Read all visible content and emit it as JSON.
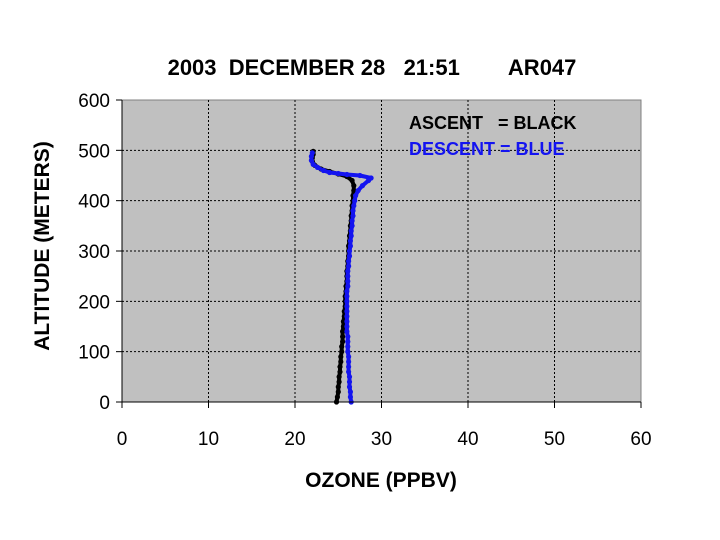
{
  "chart_data": {
    "type": "scatter",
    "title": "2003  DECEMBER 28   21:51        AR047",
    "xlabel": "OZONE (PPBV)",
    "ylabel": "ALTITUDE (METERS)",
    "xlim": [
      0,
      60
    ],
    "ylim": [
      0,
      600
    ],
    "xticks": [
      "0",
      "10",
      "20",
      "30",
      "40",
      "50",
      "60"
    ],
    "yticks": [
      "0",
      "100",
      "200",
      "300",
      "400",
      "500",
      "600"
    ],
    "grid": true,
    "plot_background": "#c0c0c0",
    "legend_position": "top-right",
    "legend": [
      {
        "label": "ASCENT   = BLACK",
        "color": "#000000"
      },
      {
        "label": "DESCENT = BLUE",
        "color": "#1414f0"
      }
    ],
    "series": [
      {
        "color": "#000000",
        "points": [
          [
            24.8,
            0
          ],
          [
            24.9,
            10
          ],
          [
            25.0,
            20
          ],
          [
            25.0,
            30
          ],
          [
            25.1,
            40
          ],
          [
            25.1,
            50
          ],
          [
            25.2,
            60
          ],
          [
            25.2,
            70
          ],
          [
            25.3,
            80
          ],
          [
            25.3,
            90
          ],
          [
            25.4,
            100
          ],
          [
            25.4,
            110
          ],
          [
            25.5,
            120
          ],
          [
            25.5,
            130
          ],
          [
            25.5,
            140
          ],
          [
            25.6,
            150
          ],
          [
            25.6,
            160
          ],
          [
            25.7,
            170
          ],
          [
            25.7,
            180
          ],
          [
            25.8,
            190
          ],
          [
            25.8,
            200
          ],
          [
            25.8,
            210
          ],
          [
            25.9,
            220
          ],
          [
            25.9,
            230
          ],
          [
            26.0,
            240
          ],
          [
            26.0,
            250
          ],
          [
            26.0,
            260
          ],
          [
            26.1,
            270
          ],
          [
            26.1,
            280
          ],
          [
            26.2,
            290
          ],
          [
            26.2,
            300
          ],
          [
            26.2,
            310
          ],
          [
            26.3,
            320
          ],
          [
            26.3,
            330
          ],
          [
            26.4,
            340
          ],
          [
            26.4,
            350
          ],
          [
            26.5,
            360
          ],
          [
            26.5,
            370
          ],
          [
            26.6,
            380
          ],
          [
            26.6,
            390
          ],
          [
            26.7,
            400
          ],
          [
            26.7,
            410
          ],
          [
            26.8,
            420
          ],
          [
            26.8,
            430
          ],
          [
            26.6,
            440
          ],
          [
            26.0,
            448
          ],
          [
            25.0,
            453
          ],
          [
            24.0,
            458
          ],
          [
            23.0,
            463
          ],
          [
            22.3,
            470
          ],
          [
            22.0,
            478
          ],
          [
            22.0,
            485
          ],
          [
            22.1,
            492
          ],
          [
            22.1,
            498
          ]
        ]
      },
      {
        "color": "#1414f0",
        "points": [
          [
            26.5,
            0
          ],
          [
            26.4,
            10
          ],
          [
            26.4,
            20
          ],
          [
            26.3,
            30
          ],
          [
            26.3,
            40
          ],
          [
            26.3,
            50
          ],
          [
            26.2,
            60
          ],
          [
            26.2,
            70
          ],
          [
            26.2,
            80
          ],
          [
            26.2,
            90
          ],
          [
            26.1,
            100
          ],
          [
            26.1,
            110
          ],
          [
            26.1,
            120
          ],
          [
            26.1,
            130
          ],
          [
            26.0,
            140
          ],
          [
            26.0,
            150
          ],
          [
            26.0,
            160
          ],
          [
            26.0,
            170
          ],
          [
            26.0,
            180
          ],
          [
            26.0,
            190
          ],
          [
            26.0,
            200
          ],
          [
            26.0,
            210
          ],
          [
            26.0,
            220
          ],
          [
            26.1,
            230
          ],
          [
            26.1,
            240
          ],
          [
            26.1,
            250
          ],
          [
            26.1,
            260
          ],
          [
            26.2,
            270
          ],
          [
            26.2,
            280
          ],
          [
            26.3,
            290
          ],
          [
            26.3,
            300
          ],
          [
            26.4,
            310
          ],
          [
            26.4,
            320
          ],
          [
            26.5,
            330
          ],
          [
            26.5,
            340
          ],
          [
            26.6,
            350
          ],
          [
            26.6,
            360
          ],
          [
            26.7,
            370
          ],
          [
            26.7,
            380
          ],
          [
            26.8,
            390
          ],
          [
            26.9,
            400
          ],
          [
            27.0,
            410
          ],
          [
            27.3,
            420
          ],
          [
            27.8,
            430
          ],
          [
            28.5,
            440
          ],
          [
            28.8,
            445
          ],
          [
            27.5,
            450
          ],
          [
            26.0,
            452
          ],
          [
            25.0,
            454
          ],
          [
            24.0,
            456
          ],
          [
            23.3,
            460
          ],
          [
            22.6,
            466
          ],
          [
            22.1,
            472
          ],
          [
            21.9,
            480
          ],
          [
            21.9,
            488
          ],
          [
            22.0,
            495
          ]
        ]
      }
    ]
  }
}
